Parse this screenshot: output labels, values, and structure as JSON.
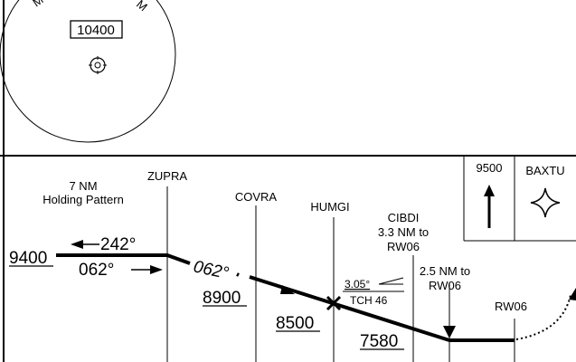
{
  "plan_view": {
    "msa_arc_left": "M",
    "msa_arc_right": "M",
    "msa_altitude": "10400"
  },
  "profile": {
    "holding": {
      "line1": "7 NM",
      "line2": "Holding Pattern"
    },
    "fixes": {
      "zupra": "ZUPRA",
      "covra": "COVRA",
      "humgi": "HUMGI",
      "cibdi": "CIBDI",
      "cibdi_dist_line1": "3.3 NM to",
      "cibdi_dist_line2": "RW06",
      "rw06_dist_line1": "2.5 NM to",
      "rw06_dist_line2": "RW06",
      "runway": "RW06",
      "baxtu": "BAXTU"
    },
    "altitudes": {
      "holding": "9400",
      "zupra_covra": "8900",
      "covra_humgi": "8500",
      "cibdi": "7580",
      "missed": "9500"
    },
    "courses": {
      "outbound": "242°",
      "inbound": "062°",
      "final": "062°"
    },
    "glidepath": {
      "angle": "3.05°",
      "tch": "TCH 46"
    }
  }
}
